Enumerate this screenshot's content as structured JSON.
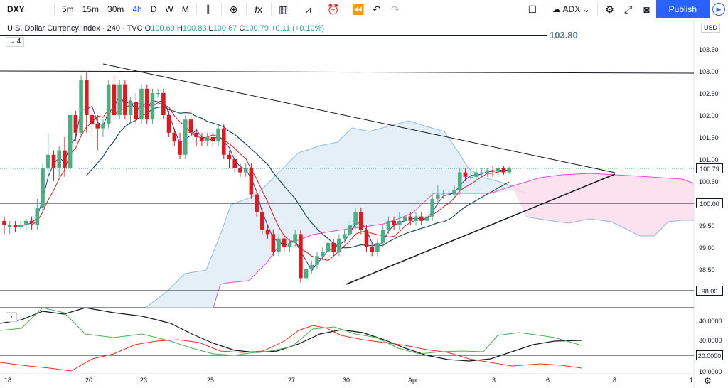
{
  "toolbar": {
    "symbol": "DXY",
    "intervals": [
      "5m",
      "15m",
      "30m",
      "4h",
      "D",
      "W",
      "M"
    ],
    "active_interval": "4h",
    "indicator_name": "ADX",
    "publish_label": "Publish"
  },
  "legend": {
    "title": "U.S. Dollar Currency Index · 240 · TVC",
    "open_label": "O",
    "open": "100.69",
    "high_label": "H",
    "high": "100.83",
    "low_label": "L",
    "low": "100.67",
    "close_label": "C",
    "close": "100.79",
    "change": "+0.11 (+0.10%)",
    "collapse": "4"
  },
  "price_axis": {
    "currency": "USD",
    "labels": [
      "103.50",
      "103.00",
      "102.50",
      "102.00",
      "101.50",
      "101.00",
      "100.50",
      "99.50",
      "99.00",
      "98.50"
    ],
    "badges": [
      "100.79",
      "100.00",
      "98.00"
    ],
    "resistance_label": "103.80"
  },
  "indicator_axis": {
    "labels": [
      "40.0000",
      "30.0000",
      "10.0000"
    ],
    "badge": "20.0000",
    "collapse": "›"
  },
  "time_axis": {
    "labels": [
      "18",
      "20",
      "23",
      "25",
      "27",
      "30",
      "Apr",
      "3",
      "6",
      "8",
      "1"
    ]
  },
  "colors": {
    "up": "#4caf82",
    "down": "#e0191e",
    "accent": "#2962ff",
    "cloud_bull": "#d5e6f3",
    "cloud_bear": "#fbd9ea"
  }
}
